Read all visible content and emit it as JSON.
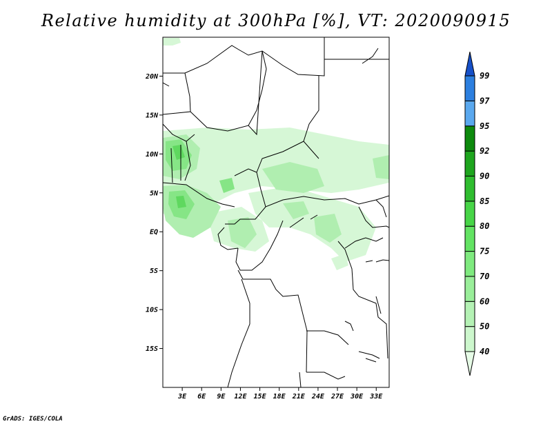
{
  "title": "Relative humidity at 300hPa [%], VT: 2020090915",
  "credit": "GrADS: IGES/COLA",
  "map": {
    "lat_labels": [
      "20N",
      "15N",
      "10N",
      "5N",
      "EQ",
      "5S",
      "10S",
      "15S"
    ],
    "lat_values": [
      20,
      15,
      10,
      5,
      0,
      -5,
      -10,
      -15
    ],
    "lon_labels": [
      "3E",
      "6E",
      "9E",
      "12E",
      "15E",
      "18E",
      "21E",
      "24E",
      "27E",
      "30E",
      "33E"
    ],
    "lon_values": [
      3,
      6,
      9,
      12,
      15,
      18,
      21,
      24,
      27,
      30,
      33
    ],
    "lon_range": [
      0,
      35
    ],
    "lat_range": [
      -20,
      25
    ]
  },
  "colorbar": {
    "levels": [
      "40",
      "50",
      "60",
      "70",
      "75",
      "80",
      "85",
      "90",
      "92",
      "95",
      "97",
      "99"
    ],
    "colors": [
      "#e6fbe6",
      "#cdf7cd",
      "#b5f2b5",
      "#9aee9a",
      "#7fea7f",
      "#63e363",
      "#47d547",
      "#2fbd2f",
      "#1ea51e",
      "#0d8a0d",
      "#5aa8ee",
      "#2c7fdf",
      "#1650c8"
    ]
  }
}
